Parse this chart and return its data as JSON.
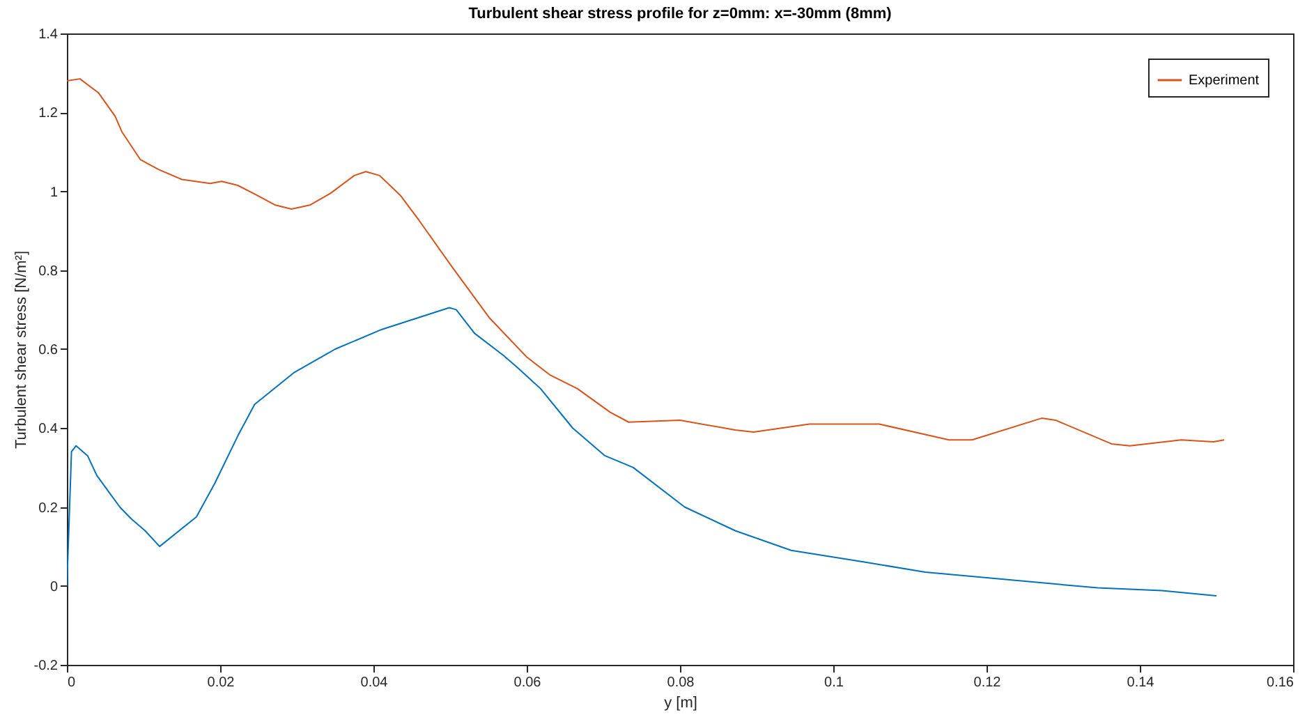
{
  "chart_data": {
    "type": "line",
    "title": "Turbulent shear stress profile for z=0mm: x=-30mm (8mm)",
    "xlabel": "y [m]",
    "ylabel": "Turbulent shear stress [N/m²]",
    "xlim": [
      0,
      0.16
    ],
    "ylim": [
      -0.2,
      1.4
    ],
    "xticks": [
      0,
      0.02,
      0.04,
      0.06,
      0.08,
      0.1,
      0.12,
      0.14,
      0.16
    ],
    "yticks": [
      -0.2,
      0,
      0.2,
      0.4,
      0.6,
      0.8,
      1,
      1.2,
      1.4
    ],
    "grid": false,
    "legend": "top right",
    "series": [
      {
        "color": "#0072bd",
        "x": [
          0,
          0.0006,
          0.0012,
          0.0027,
          0.0039,
          0.0054,
          0.0069,
          0.0084,
          0.0102,
          0.0121,
          0.0169,
          0.0193,
          0.0223,
          0.0245,
          0.0296,
          0.035,
          0.0411,
          0.0499,
          0.0508,
          0.0532,
          0.0569,
          0.0587,
          0.0618,
          0.066,
          0.0702,
          0.0739,
          0.0806,
          0.0872,
          0.0945,
          0.1042,
          0.112,
          0.126,
          0.1345,
          0.1429,
          0.15
        ],
        "values": [
          0,
          0.34,
          0.355,
          0.33,
          0.28,
          0.24,
          0.2,
          0.17,
          0.14,
          0.1,
          0.175,
          0.26,
          0.38,
          0.46,
          0.54,
          0.6,
          0.65,
          0.705,
          0.7,
          0.64,
          0.585,
          0.555,
          0.5,
          0.4,
          0.33,
          0.3,
          0.2,
          0.14,
          0.09,
          0.06,
          0.035,
          0.01,
          -0.005,
          -0.012,
          -0.025
        ]
      },
      {
        "name": "Experiment",
        "color": "#d95319",
        "x": [
          0,
          0.0017,
          0.0041,
          0.0063,
          0.0072,
          0.0096,
          0.012,
          0.015,
          0.0187,
          0.0202,
          0.0223,
          0.0248,
          0.0272,
          0.0293,
          0.0317,
          0.0344,
          0.0375,
          0.039,
          0.0408,
          0.0435,
          0.046,
          0.0502,
          0.0551,
          0.06,
          0.063,
          0.0666,
          0.0709,
          0.0733,
          0.08,
          0.0872,
          0.0896,
          0.0969,
          0.1042,
          0.106,
          0.1151,
          0.1181,
          0.1272,
          0.129,
          0.1363,
          0.1387,
          0.1454,
          0.1496,
          0.151
        ],
        "values": [
          1.28,
          1.285,
          1.25,
          1.19,
          1.15,
          1.08,
          1.055,
          1.03,
          1.02,
          1.025,
          1.015,
          0.99,
          0.965,
          0.955,
          0.965,
          0.995,
          1.04,
          1.05,
          1.04,
          0.99,
          0.925,
          0.81,
          0.68,
          0.58,
          0.535,
          0.5,
          0.44,
          0.415,
          0.42,
          0.395,
          0.39,
          0.41,
          0.41,
          0.41,
          0.37,
          0.37,
          0.425,
          0.42,
          0.36,
          0.355,
          0.37,
          0.365,
          0.37
        ]
      }
    ]
  }
}
